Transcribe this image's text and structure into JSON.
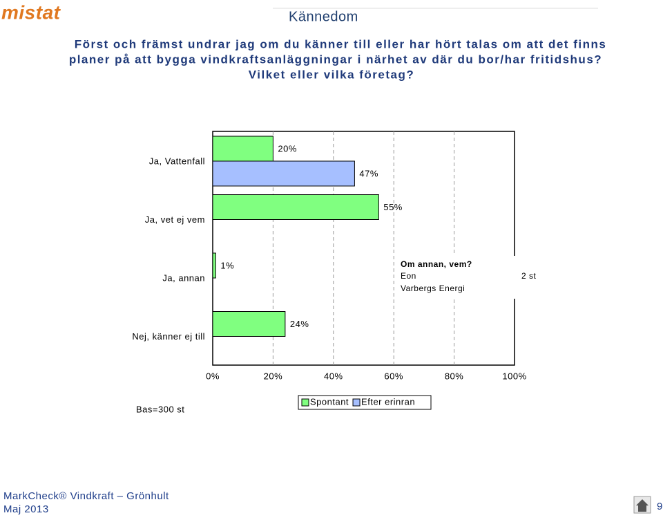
{
  "logo": "mistat",
  "slide_title": "Kännedom",
  "question": [
    "Först och främst undrar jag om du känner till eller har hört talas om att det finns",
    "planer på att bygga vindkraftsanläggningar i närhet av där du bor/har fritidshus?",
    "Vilket eller vilka företag?"
  ],
  "chart_data": {
    "type": "bar",
    "categories": [
      "Ja, Vattenfall",
      "Ja, vet ej vem",
      "Ja, annan",
      "Nej, känner ej till"
    ],
    "series": [
      {
        "name": "Spontant",
        "color": "#80ff80",
        "values": [
          20,
          55,
          1,
          24
        ],
        "value_labels": [
          "20%",
          "55%",
          "1%",
          "24%"
        ]
      },
      {
        "name": "Efter erinran",
        "color": "#a6bfff",
        "values": [
          47,
          null,
          null,
          null
        ],
        "value_labels": [
          "47%",
          null,
          null,
          null
        ]
      }
    ],
    "xlim": [
      0,
      100
    ],
    "xticks": [
      {
        "value": 0,
        "label": "0%"
      },
      {
        "value": 20,
        "label": "20%"
      },
      {
        "value": 40,
        "label": "40%"
      },
      {
        "value": 60,
        "label": "60%"
      },
      {
        "value": 80,
        "label": "80%"
      },
      {
        "value": 100,
        "label": "100%"
      }
    ],
    "grid": true,
    "annotation": {
      "title": "Om annan, vem?",
      "items": [
        "Eon",
        "Varbergs Energi"
      ],
      "count": "2 st"
    },
    "base_note": "Bas=300 st"
  },
  "footer": {
    "line1": "MarkCheck® Vindkraft – Grönhult",
    "date": "Maj 2013",
    "page": "9"
  }
}
